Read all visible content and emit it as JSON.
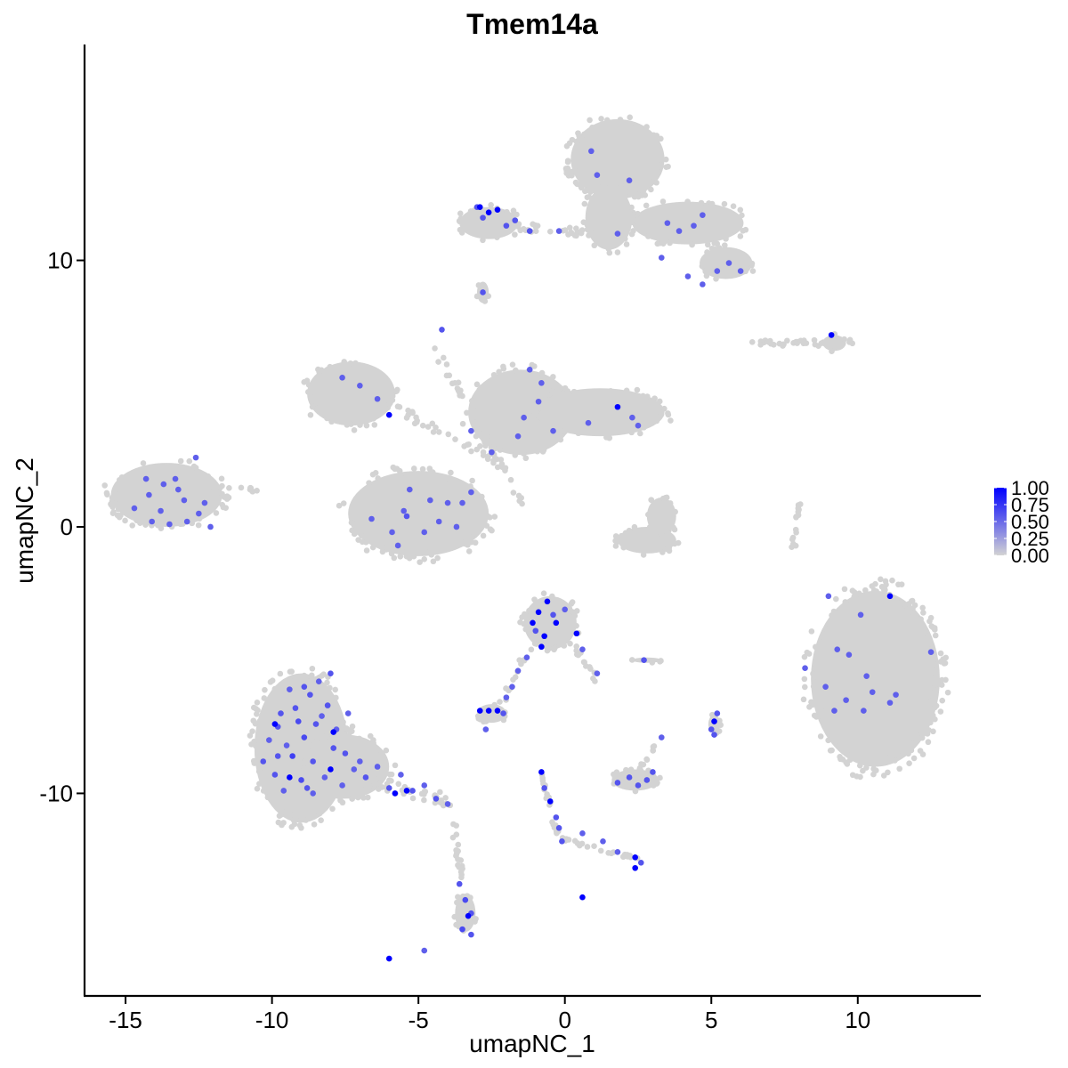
{
  "chart_data": {
    "type": "scatter",
    "title": "Tmem14a",
    "xlabel": "umapNC_1",
    "ylabel": "umapNC_2",
    "xlim": [
      -16.4,
      14.2
    ],
    "ylim": [
      -17.6,
      18.1
    ],
    "x_ticks": [
      -15,
      -10,
      -5,
      0,
      5,
      10
    ],
    "x_tick_labels": [
      "-15",
      "-10",
      "-5",
      "0",
      "5",
      "10"
    ],
    "y_ticks": [
      -10,
      0,
      10
    ],
    "y_tick_labels": [
      "-10",
      "0",
      "10"
    ],
    "grid": false,
    "legend_placement": "right",
    "color_low": "#d3d3d3",
    "color_high": "#0000ff",
    "colorbar": {
      "min": 0,
      "max": 1,
      "ticks": [
        1.0,
        0.75,
        0.5,
        0.25,
        0.0
      ],
      "tick_labels": [
        "1.00",
        "0.75",
        "0.50",
        "0.25",
        "0.00"
      ]
    },
    "background_clusters": [
      {
        "shape": "ellipse",
        "cx": 1.8,
        "cy": 13.8,
        "rx": 1.6,
        "ry": 1.5,
        "n": 110
      },
      {
        "shape": "ellipse",
        "cx": 1.5,
        "cy": 11.6,
        "rx": 0.8,
        "ry": 1.2,
        "n": 40
      },
      {
        "shape": "ellipse",
        "cx": 4.2,
        "cy": 11.4,
        "rx": 1.9,
        "ry": 0.8,
        "n": 55
      },
      {
        "shape": "ellipse",
        "cx": 5.5,
        "cy": 9.9,
        "rx": 0.9,
        "ry": 0.6,
        "n": 22
      },
      {
        "shape": "line",
        "x1": -3.5,
        "y1": 11.5,
        "x2": 1.0,
        "y2": 11.0,
        "w": 0.35,
        "n": 60
      },
      {
        "shape": "ellipse",
        "cx": -2.6,
        "cy": 11.4,
        "rx": 1.0,
        "ry": 0.6,
        "n": 28
      },
      {
        "shape": "ellipse",
        "cx": -2.8,
        "cy": 8.8,
        "rx": 0.2,
        "ry": 0.4,
        "n": 6
      },
      {
        "shape": "line",
        "x1": 6.5,
        "y1": 6.9,
        "x2": 9.9,
        "y2": 6.9,
        "w": 0.25,
        "n": 36
      },
      {
        "shape": "ellipse",
        "cx": 9.2,
        "cy": 6.9,
        "rx": 0.4,
        "ry": 0.3,
        "n": 8
      },
      {
        "shape": "ellipse",
        "cx": -7.3,
        "cy": 5.0,
        "rx": 1.5,
        "ry": 1.2,
        "n": 60
      },
      {
        "shape": "ellipse",
        "cx": -5.0,
        "cy": 0.5,
        "rx": 2.4,
        "ry": 1.6,
        "n": 110
      },
      {
        "shape": "ellipse",
        "cx": -1.5,
        "cy": 4.3,
        "rx": 1.8,
        "ry": 1.6,
        "n": 70
      },
      {
        "shape": "ellipse",
        "cx": 1.2,
        "cy": 4.3,
        "rx": 2.2,
        "ry": 0.9,
        "n": 65
      },
      {
        "shape": "line",
        "x1": -4.5,
        "y1": 6.8,
        "x2": -1.3,
        "y2": 0.6,
        "w": 0.25,
        "n": 45
      },
      {
        "shape": "line",
        "x1": -6.5,
        "y1": 5.0,
        "x2": -2.5,
        "y2": 2.5,
        "w": 0.4,
        "n": 35
      },
      {
        "shape": "ellipse",
        "cx": -13.6,
        "cy": 1.2,
        "rx": 1.9,
        "ry": 1.2,
        "n": 90
      },
      {
        "shape": "line",
        "x1": -12.5,
        "y1": 1.5,
        "x2": -10.5,
        "y2": 1.4,
        "w": 0.2,
        "n": 12
      },
      {
        "shape": "ellipse",
        "cx": 2.8,
        "cy": -0.5,
        "rx": 1.0,
        "ry": 0.5,
        "n": 40
      },
      {
        "shape": "ellipse",
        "cx": 3.3,
        "cy": 0.4,
        "rx": 0.5,
        "ry": 0.7,
        "n": 22
      },
      {
        "shape": "line",
        "x1": 8.0,
        "y1": 1.0,
        "x2": 7.8,
        "y2": -0.8,
        "w": 0.15,
        "n": 16
      },
      {
        "shape": "ellipse",
        "cx": 10.6,
        "cy": -5.7,
        "rx": 2.2,
        "ry": 3.3,
        "n": 260
      },
      {
        "shape": "ellipse",
        "cx": -9.0,
        "cy": -8.3,
        "rx": 1.6,
        "ry": 2.8,
        "n": 160
      },
      {
        "shape": "ellipse",
        "cx": -7.5,
        "cy": -9.0,
        "rx": 1.5,
        "ry": 1.2,
        "n": 70
      },
      {
        "shape": "line",
        "x1": -7.0,
        "y1": -9.5,
        "x2": -3.9,
        "y2": -10.3,
        "w": 0.5,
        "n": 45
      },
      {
        "shape": "line",
        "x1": -3.9,
        "y1": -10.5,
        "x2": -3.5,
        "y2": -13.5,
        "w": 0.2,
        "n": 18
      },
      {
        "shape": "ellipse",
        "cx": -3.4,
        "cy": -14.5,
        "rx": 0.35,
        "ry": 0.7,
        "n": 22
      },
      {
        "shape": "ellipse",
        "cx": -0.5,
        "cy": -3.6,
        "rx": 0.9,
        "ry": 1.0,
        "n": 45
      },
      {
        "shape": "line",
        "x1": 0.2,
        "y1": -4.2,
        "x2": 1.1,
        "y2": -5.8,
        "w": 0.25,
        "n": 14
      },
      {
        "shape": "line",
        "x1": -1.2,
        "y1": -4.5,
        "x2": -2.3,
        "y2": -6.9,
        "w": 0.2,
        "n": 14
      },
      {
        "shape": "ellipse",
        "cx": -2.5,
        "cy": -7.0,
        "rx": 0.5,
        "ry": 0.35,
        "n": 16
      },
      {
        "shape": "ellipse",
        "cx": 2.4,
        "cy": -9.5,
        "rx": 0.8,
        "ry": 0.4,
        "n": 25
      },
      {
        "shape": "line",
        "x1": 2.6,
        "y1": -9.2,
        "x2": 3.3,
        "y2": -7.6,
        "w": 0.2,
        "n": 10
      },
      {
        "shape": "line",
        "x1": -0.8,
        "y1": -9.2,
        "x2": -0.2,
        "y2": -11.7,
        "w": 0.15,
        "n": 18
      },
      {
        "shape": "line",
        "x1": -0.2,
        "y1": -11.7,
        "x2": 2.6,
        "y2": -12.5,
        "w": 0.15,
        "n": 22
      },
      {
        "shape": "ellipse",
        "cx": 5.1,
        "cy": -7.4,
        "rx": 0.2,
        "ry": 0.35,
        "n": 10
      },
      {
        "shape": "ellipse",
        "cx": 2.8,
        "cy": -5.0,
        "rx": 0.5,
        "ry": 0.1,
        "n": 6
      }
    ],
    "expressing_cells": [
      [
        -9.8,
        -7.5,
        0.6
      ],
      [
        -9.5,
        -8.2,
        0.55
      ],
      [
        -9.2,
        -6.8,
        0.6
      ],
      [
        -8.9,
        -7.9,
        0.65
      ],
      [
        -8.6,
        -8.8,
        0.6
      ],
      [
        -8.3,
        -7.1,
        0.55
      ],
      [
        -9.9,
        -9.3,
        0.6
      ],
      [
        -9.6,
        -9.9,
        0.55
      ],
      [
        -9.0,
        -9.5,
        0.65
      ],
      [
        -8.7,
        -6.3,
        0.6
      ],
      [
        -8.4,
        -5.8,
        0.55
      ],
      [
        -8.1,
        -6.7,
        0.6
      ],
      [
        -7.8,
        -7.6,
        0.55
      ],
      [
        -7.5,
        -8.5,
        0.6
      ],
      [
        -7.2,
        -9.1,
        0.55
      ],
      [
        -9.3,
        -8.6,
        0.7
      ],
      [
        -8.8,
        -9.8,
        0.6
      ],
      [
        -8.2,
        -9.4,
        0.55
      ],
      [
        -9.7,
        -7.0,
        0.6
      ],
      [
        -10.1,
        -8.0,
        0.55
      ],
      [
        -10.3,
        -8.8,
        0.6
      ],
      [
        -9.4,
        -6.1,
        0.55
      ],
      [
        -8.5,
        -7.4,
        0.6
      ],
      [
        -7.9,
        -8.3,
        0.6
      ],
      [
        -7.6,
        -9.7,
        0.55
      ],
      [
        -6.8,
        -9.4,
        0.6
      ],
      [
        -6.4,
        -9.0,
        0.55
      ],
      [
        -6.0,
        -9.8,
        0.6
      ],
      [
        -5.6,
        -9.3,
        0.55
      ],
      [
        -5.2,
        -9.9,
        0.6
      ],
      [
        -4.8,
        -9.7,
        0.55
      ],
      [
        -4.4,
        -10.2,
        0.6
      ],
      [
        -4.0,
        -10.4,
        0.55
      ],
      [
        -9.1,
        -7.3,
        0.65
      ],
      [
        -8.0,
        -5.5,
        0.6
      ],
      [
        -8.6,
        -10.0,
        0.55
      ],
      [
        -9.8,
        -8.6,
        0.6
      ],
      [
        -7.4,
        -7.0,
        0.55
      ],
      [
        -8.9,
        -6.0,
        0.6
      ],
      [
        -7.0,
        -8.8,
        0.55
      ],
      [
        -9.9,
        -7.4,
        1.0
      ],
      [
        -9.4,
        -9.4,
        1.0
      ],
      [
        -8.0,
        -9.1,
        1.0
      ],
      [
        -7.9,
        -7.7,
        1.0
      ],
      [
        -5.8,
        -10.0,
        1.0
      ],
      [
        -5.4,
        -9.9,
        1.0
      ],
      [
        -3.6,
        -13.4,
        0.6
      ],
      [
        -3.4,
        -14.0,
        0.65
      ],
      [
        -3.2,
        -14.5,
        0.6
      ],
      [
        -3.5,
        -15.1,
        0.65
      ],
      [
        -3.2,
        -15.3,
        0.6
      ],
      [
        -3.3,
        -14.6,
        1.0
      ],
      [
        -4.8,
        -15.9,
        0.55
      ],
      [
        -6.0,
        -16.2,
        1.0
      ],
      [
        -0.9,
        -3.2,
        1.0
      ],
      [
        -1.1,
        -3.6,
        1.0
      ],
      [
        -0.6,
        -2.8,
        1.0
      ],
      [
        -0.3,
        -3.6,
        1.0
      ],
      [
        -0.7,
        -4.1,
        1.0
      ],
      [
        0.4,
        -4.0,
        1.0
      ],
      [
        -0.8,
        -4.5,
        1.0
      ],
      [
        -1.0,
        -3.9,
        0.6
      ],
      [
        -0.4,
        -3.3,
        0.6
      ],
      [
        0.0,
        -3.1,
        0.55
      ],
      [
        0.6,
        -4.6,
        0.55
      ],
      [
        1.1,
        -5.5,
        0.55
      ],
      [
        -1.3,
        -4.9,
        0.55
      ],
      [
        -1.6,
        -5.4,
        0.55
      ],
      [
        -1.8,
        -6.0,
        0.55
      ],
      [
        -2.0,
        -6.4,
        0.55
      ],
      [
        -2.9,
        -6.9,
        1.0
      ],
      [
        -2.6,
        -6.9,
        1.0
      ],
      [
        -2.3,
        -6.9,
        1.0
      ],
      [
        -2.1,
        -7.0,
        0.6
      ],
      [
        -2.7,
        -7.6,
        0.55
      ],
      [
        -0.8,
        -9.2,
        1.0
      ],
      [
        -0.7,
        -9.8,
        0.6
      ],
      [
        -0.5,
        -10.3,
        1.0
      ],
      [
        -0.3,
        -10.9,
        0.6
      ],
      [
        -0.2,
        -11.3,
        0.6
      ],
      [
        -0.1,
        -11.8,
        0.6
      ],
      [
        0.6,
        -11.5,
        0.55
      ],
      [
        1.3,
        -11.8,
        0.55
      ],
      [
        1.8,
        -12.2,
        0.55
      ],
      [
        2.4,
        -12.4,
        1.0
      ],
      [
        2.4,
        -12.8,
        1.0
      ],
      [
        2.6,
        -12.6,
        0.6
      ],
      [
        0.6,
        -13.9,
        1.0
      ],
      [
        1.8,
        -9.6,
        0.6
      ],
      [
        2.2,
        -9.4,
        0.6
      ],
      [
        2.5,
        -9.7,
        0.6
      ],
      [
        2.8,
        -9.5,
        0.6
      ],
      [
        3.0,
        -9.2,
        0.6
      ],
      [
        3.3,
        -7.9,
        0.55
      ],
      [
        5.1,
        -7.3,
        1.0
      ],
      [
        5.0,
        -7.6,
        0.6
      ],
      [
        5.2,
        -7.0,
        0.6
      ],
      [
        5.1,
        -7.8,
        0.6
      ],
      [
        2.7,
        -5.0,
        0.6
      ],
      [
        9.0,
        -2.6,
        0.55
      ],
      [
        11.1,
        -2.6,
        1.0
      ],
      [
        10.1,
        -3.3,
        0.55
      ],
      [
        9.3,
        -4.6,
        0.55
      ],
      [
        8.2,
        -5.3,
        0.55
      ],
      [
        9.7,
        -4.8,
        0.55
      ],
      [
        12.5,
        -4.7,
        0.55
      ],
      [
        10.3,
        -5.6,
        0.55
      ],
      [
        8.9,
        -6.0,
        0.55
      ],
      [
        9.6,
        -6.5,
        0.55
      ],
      [
        10.5,
        -6.2,
        0.55
      ],
      [
        11.3,
        -6.3,
        0.55
      ],
      [
        9.2,
        -6.9,
        0.55
      ],
      [
        10.2,
        -6.9,
        0.55
      ],
      [
        11.1,
        -6.6,
        0.55
      ],
      [
        -12.6,
        2.6,
        0.55
      ],
      [
        -13.3,
        1.8,
        0.55
      ],
      [
        -13.7,
        1.6,
        0.55
      ],
      [
        -14.2,
        1.2,
        0.55
      ],
      [
        -13.0,
        1.0,
        0.55
      ],
      [
        -12.3,
        0.9,
        0.55
      ],
      [
        -13.8,
        0.6,
        0.55
      ],
      [
        -14.1,
        0.2,
        0.55
      ],
      [
        -12.9,
        0.2,
        0.55
      ],
      [
        -12.5,
        0.5,
        0.55
      ],
      [
        -14.7,
        0.7,
        0.55
      ],
      [
        -13.5,
        0.1,
        0.55
      ],
      [
        -12.1,
        0.0,
        0.55
      ],
      [
        -13.2,
        1.4,
        0.55
      ],
      [
        -14.3,
        1.8,
        0.55
      ],
      [
        -2.9,
        12.0,
        1.0
      ],
      [
        -2.6,
        11.8,
        1.0
      ],
      [
        -2.3,
        11.9,
        1.0
      ],
      [
        -2.8,
        11.6,
        0.6
      ],
      [
        -2.0,
        11.3,
        0.6
      ],
      [
        -1.7,
        11.5,
        0.6
      ],
      [
        -1.2,
        11.1,
        0.6
      ],
      [
        -0.2,
        11.1,
        0.55
      ],
      [
        0.9,
        14.1,
        0.55
      ],
      [
        1.1,
        13.2,
        0.55
      ],
      [
        2.2,
        13.0,
        0.55
      ],
      [
        1.8,
        11.0,
        0.55
      ],
      [
        3.5,
        11.4,
        0.55
      ],
      [
        3.9,
        11.1,
        0.55
      ],
      [
        4.4,
        11.3,
        0.55
      ],
      [
        4.7,
        11.7,
        0.55
      ],
      [
        3.3,
        10.1,
        0.55
      ],
      [
        4.2,
        9.4,
        0.55
      ],
      [
        4.7,
        9.1,
        0.55
      ],
      [
        5.2,
        9.6,
        0.55
      ],
      [
        5.6,
        9.9,
        0.55
      ],
      [
        6.0,
        9.6,
        0.55
      ],
      [
        -2.8,
        8.8,
        0.6
      ],
      [
        -4.2,
        7.4,
        0.6
      ],
      [
        9.1,
        7.2,
        1.0
      ],
      [
        -6.0,
        4.2,
        1.0
      ],
      [
        1.8,
        4.5,
        1.0
      ],
      [
        -7.6,
        5.6,
        0.55
      ],
      [
        -7.0,
        5.3,
        0.55
      ],
      [
        -6.4,
        4.8,
        0.55
      ],
      [
        -1.2,
        5.9,
        0.55
      ],
      [
        -0.8,
        5.4,
        0.55
      ],
      [
        -0.9,
        4.7,
        0.55
      ],
      [
        -1.4,
        4.1,
        0.55
      ],
      [
        -0.4,
        3.6,
        0.55
      ],
      [
        2.3,
        4.1,
        0.55
      ],
      [
        2.5,
        3.8,
        0.55
      ],
      [
        0.8,
        3.9,
        0.55
      ],
      [
        -1.6,
        3.4,
        0.55
      ],
      [
        -3.2,
        3.6,
        0.55
      ],
      [
        -2.5,
        2.8,
        0.55
      ],
      [
        -5.3,
        1.4,
        0.55
      ],
      [
        -4.6,
        1.0,
        0.55
      ],
      [
        -4.0,
        0.9,
        0.55
      ],
      [
        -5.5,
        0.6,
        0.55
      ],
      [
        -4.3,
        0.2,
        0.55
      ],
      [
        -6.6,
        0.3,
        0.55
      ],
      [
        -3.7,
        0.0,
        0.55
      ],
      [
        -4.8,
        -0.2,
        0.55
      ],
      [
        -5.9,
        -0.2,
        0.55
      ],
      [
        -3.2,
        1.3,
        0.55
      ],
      [
        -5.7,
        -0.7,
        0.55
      ],
      [
        -3.5,
        0.9,
        0.55
      ],
      [
        -5.4,
        0.4,
        0.6
      ],
      [
        -3.0,
        12.0,
        0.6
      ]
    ]
  }
}
